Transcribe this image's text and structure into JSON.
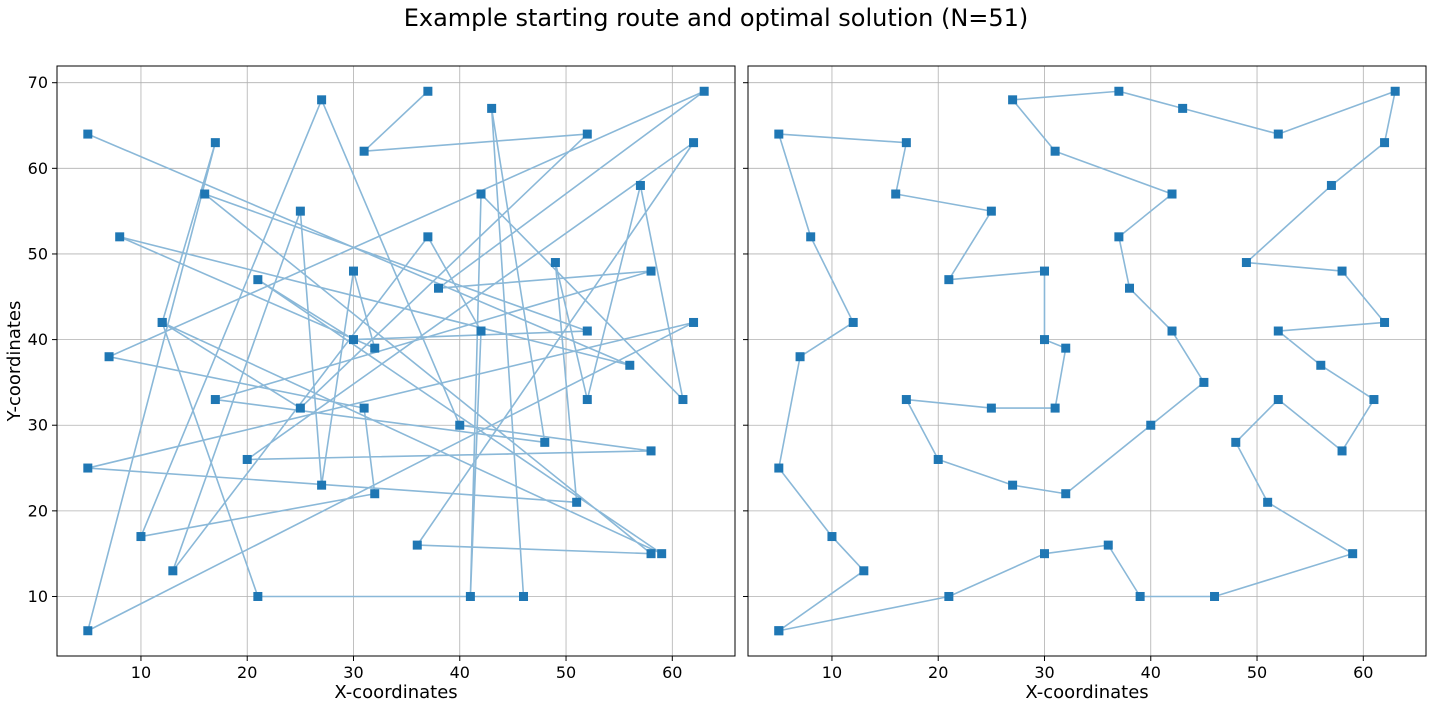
{
  "figure": {
    "title": "Example starting route and optimal solution (N=51)"
  },
  "colors": {
    "route_line": "#8ab8d8",
    "marker": "#1f77b4",
    "grid": "#b0b0b0",
    "frame": "#000000"
  },
  "chart_data": [
    {
      "type": "line",
      "subtitle": "",
      "xlabel": "X-coordinates",
      "ylabel": "Y-coordinates",
      "xlim": [
        2.1,
        65.9
      ],
      "ylim": [
        3.05,
        71.95
      ],
      "xticks": [
        10,
        20,
        30,
        40,
        50,
        60
      ],
      "yticks": [
        10,
        20,
        30,
        40,
        50,
        60,
        70
      ],
      "grid": true,
      "marker": "square",
      "route": [
        [
          5,
          64
        ],
        [
          56,
          37
        ],
        [
          8,
          52
        ],
        [
          32,
          39
        ],
        [
          30,
          48
        ],
        [
          27,
          23
        ],
        [
          25,
          55
        ],
        [
          13,
          13
        ],
        [
          37,
          52
        ],
        [
          42,
          41
        ],
        [
          41,
          10
        ],
        [
          42,
          57
        ],
        [
          61,
          33
        ],
        [
          57,
          58
        ],
        [
          52,
          33
        ],
        [
          49,
          49
        ],
        [
          51,
          21
        ],
        [
          5,
          25
        ],
        [
          62,
          42
        ],
        [
          5,
          6
        ],
        [
          17,
          63
        ],
        [
          12,
          42
        ],
        [
          21,
          10
        ],
        [
          46,
          10
        ],
        [
          43,
          67
        ],
        [
          48,
          28
        ],
        [
          17,
          33
        ],
        [
          58,
          48
        ],
        [
          38,
          46
        ],
        [
          63,
          69
        ],
        [
          7,
          38
        ],
        [
          31,
          32
        ],
        [
          32,
          22
        ],
        [
          10,
          17
        ],
        [
          27,
          68
        ],
        [
          40,
          30
        ],
        [
          58,
          27
        ],
        [
          20,
          26
        ],
        [
          62,
          63
        ],
        [
          36,
          16
        ],
        [
          58,
          15
        ],
        [
          16,
          57
        ],
        [
          52,
          41
        ],
        [
          30,
          40
        ],
        [
          21,
          47
        ],
        [
          59,
          15
        ],
        [
          12,
          42
        ],
        [
          25,
          32
        ],
        [
          52,
          64
        ],
        [
          31,
          62
        ],
        [
          37,
          69
        ]
      ]
    },
    {
      "type": "line",
      "subtitle": "",
      "xlabel": "X-coordinates",
      "ylabel": "",
      "xlim": [
        2.1,
        65.9
      ],
      "ylim": [
        3.05,
        71.95
      ],
      "xticks": [
        10,
        20,
        30,
        40,
        50,
        60
      ],
      "yticks": [
        10,
        20,
        30,
        40,
        50,
        60,
        70
      ],
      "grid": true,
      "marker": "square",
      "route": [
        [
          5,
          6
        ],
        [
          13,
          13
        ],
        [
          10,
          17
        ],
        [
          5,
          25
        ],
        [
          7,
          38
        ],
        [
          12,
          42
        ],
        [
          8,
          52
        ],
        [
          5,
          64
        ],
        [
          17,
          63
        ],
        [
          16,
          57
        ],
        [
          25,
          55
        ],
        [
          21,
          47
        ],
        [
          30,
          48
        ],
        [
          30,
          40
        ],
        [
          32,
          39
        ],
        [
          31,
          32
        ],
        [
          25,
          32
        ],
        [
          17,
          33
        ],
        [
          20,
          26
        ],
        [
          27,
          23
        ],
        [
          32,
          22
        ],
        [
          40,
          30
        ],
        [
          45,
          35
        ],
        [
          42,
          41
        ],
        [
          38,
          46
        ],
        [
          37,
          52
        ],
        [
          42,
          57
        ],
        [
          31,
          62
        ],
        [
          27,
          68
        ],
        [
          37,
          69
        ],
        [
          43,
          67
        ],
        [
          52,
          64
        ],
        [
          63,
          69
        ],
        [
          62,
          63
        ],
        [
          57,
          58
        ],
        [
          49,
          49
        ],
        [
          58,
          48
        ],
        [
          62,
          42
        ],
        [
          52,
          41
        ],
        [
          56,
          37
        ],
        [
          61,
          33
        ],
        [
          58,
          27
        ],
        [
          52,
          33
        ],
        [
          48,
          28
        ],
        [
          51,
          21
        ],
        [
          59,
          15
        ],
        [
          46,
          10
        ],
        [
          39,
          10
        ],
        [
          36,
          16
        ],
        [
          30,
          15
        ],
        [
          21,
          10
        ],
        [
          5,
          6
        ]
      ]
    }
  ]
}
